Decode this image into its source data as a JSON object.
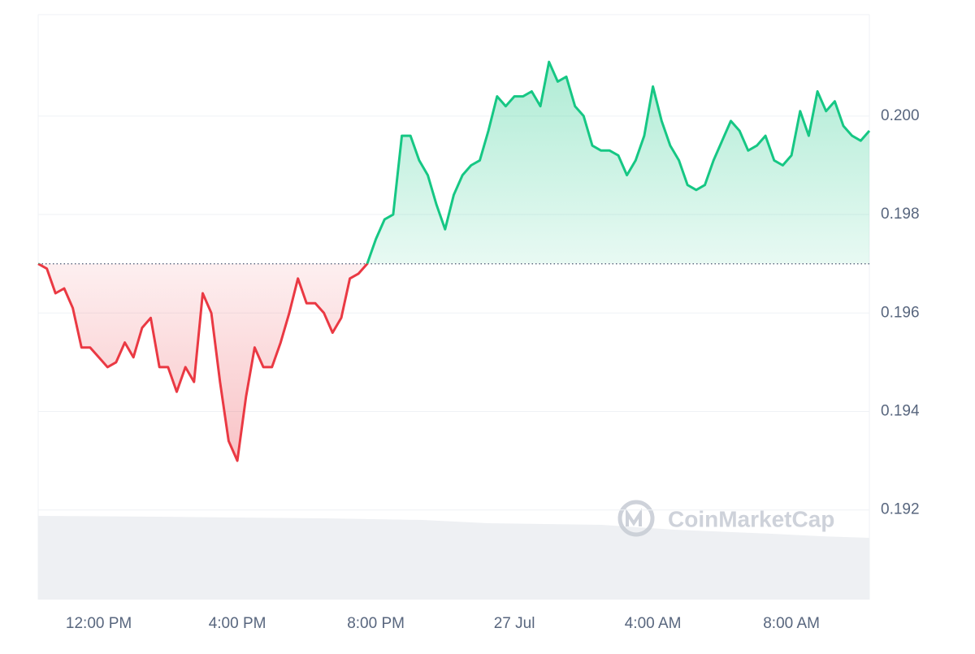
{
  "chart_data": {
    "type": "area",
    "watermark": "CoinMarketCap",
    "categories": [
      null,
      null,
      null,
      null,
      null,
      null,
      null,
      "12:00 PM",
      null,
      null,
      null,
      null,
      null,
      null,
      null,
      null,
      null,
      null,
      null,
      null,
      null,
      null,
      null,
      "4:00 PM",
      null,
      null,
      null,
      null,
      null,
      null,
      null,
      null,
      null,
      null,
      null,
      null,
      null,
      null,
      null,
      "8:00 PM",
      null,
      null,
      null,
      null,
      null,
      null,
      null,
      null,
      null,
      null,
      null,
      null,
      null,
      null,
      null,
      "27 Jul",
      null,
      null,
      null,
      null,
      null,
      null,
      null,
      null,
      null,
      null,
      null,
      null,
      null,
      null,
      null,
      "4:00 AM",
      null,
      null,
      null,
      null,
      null,
      null,
      null,
      null,
      null,
      null,
      null,
      null,
      null,
      null,
      null,
      "8:00 AM",
      null,
      null,
      null,
      null,
      null,
      null,
      null,
      null,
      null
    ],
    "values": [
      0.197,
      0.1969,
      0.1964,
      0.1965,
      0.1961,
      0.1953,
      0.1953,
      0.1951,
      0.1949,
      0.195,
      0.1954,
      0.1951,
      0.1957,
      0.1959,
      0.1949,
      0.1949,
      0.1944,
      0.1949,
      0.1946,
      0.1964,
      0.196,
      0.1946,
      0.1934,
      0.193,
      0.1943,
      0.1953,
      0.1949,
      0.1949,
      0.1954,
      0.196,
      0.1967,
      0.1962,
      0.1962,
      0.196,
      0.1956,
      0.1959,
      0.1967,
      0.1968,
      0.197,
      0.1975,
      0.1979,
      0.198,
      0.1996,
      0.1996,
      0.1991,
      0.1988,
      0.1982,
      0.1977,
      0.1984,
      0.1988,
      0.199,
      0.1991,
      0.1997,
      0.2004,
      0.2002,
      0.2004,
      0.2004,
      0.2005,
      0.2002,
      0.2011,
      0.2007,
      0.2008,
      0.2002,
      0.2,
      0.1994,
      0.1993,
      0.1993,
      0.1992,
      0.1988,
      0.1991,
      0.1996,
      0.2006,
      0.1999,
      0.1994,
      0.1991,
      0.1986,
      0.1985,
      0.1986,
      0.1991,
      0.1995,
      0.1999,
      0.1997,
      0.1993,
      0.1994,
      0.1996,
      0.1991,
      0.199,
      0.1992,
      0.2001,
      0.1996,
      0.2005,
      0.2001,
      0.2003,
      0.1998,
      0.1996,
      0.1995,
      0.1997
    ],
    "baseline": 0.197,
    "colors": {
      "up": "#16c784",
      "down": "#ea3943"
    },
    "ylim": [
      0.19018,
      0.20206
    ],
    "yticks": [
      0.192,
      0.194,
      0.196,
      0.198,
      {
        "value": 0.2,
        "label": "0.200"
      }
    ],
    "grid": true
  }
}
